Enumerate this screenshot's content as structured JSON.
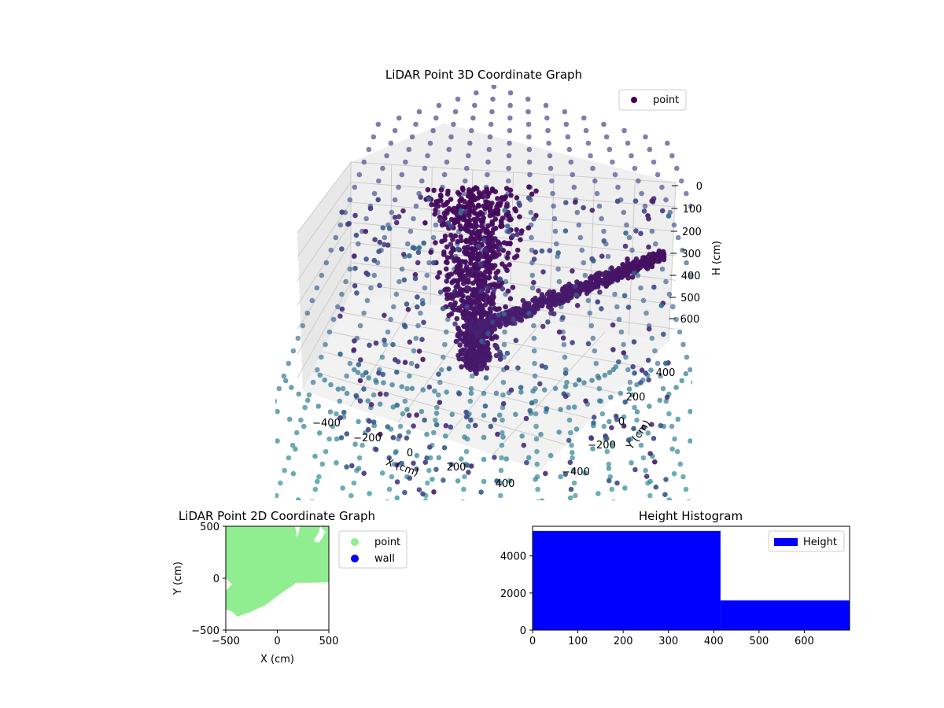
{
  "chart_data": [
    {
      "type": "scatter",
      "projection": "3d",
      "title": "LiDAR Point 3D Coordinate Graph",
      "xlabel": "X (cm)",
      "ylabel": "Y (cm)",
      "zlabel": "H (cm)",
      "xticks": [
        "−400",
        "−200",
        "0",
        "200",
        "400"
      ],
      "yticks": [
        "−400",
        "−200",
        "0",
        "200",
        "400"
      ],
      "zticks": [
        "0",
        "100",
        "200",
        "300",
        "400",
        "500",
        "600"
      ],
      "xlim": [
        -500,
        500
      ],
      "ylim": [
        -500,
        500
      ],
      "zlim": [
        0,
        650
      ],
      "z_axis_inverted": true,
      "legend": [
        {
          "label": "point",
          "color": "#440154"
        }
      ],
      "legend_position": "top-right",
      "colormap": "viridis",
      "grid": true
    },
    {
      "type": "scatter",
      "title": "LiDAR Point 2D Coordinate Graph",
      "xlabel": "X (cm)",
      "ylabel": "Y (cm)",
      "xticks": [
        "−500",
        "0",
        "500"
      ],
      "yticks": [
        "500",
        "0",
        "−500"
      ],
      "xlim": [
        -500,
        500
      ],
      "ylim": [
        -500,
        500
      ],
      "series": [
        {
          "name": "point",
          "color": "#90ee90"
        },
        {
          "name": "wall",
          "color": "#0000ff"
        }
      ],
      "legend_position": "outside-right"
    },
    {
      "type": "bar",
      "subtype": "histogram",
      "title": "Height Histogram",
      "xlabel": "",
      "ylabel": "",
      "xticks": [
        "0",
        "100",
        "200",
        "300",
        "400",
        "500",
        "600"
      ],
      "yticks": [
        "0",
        "2000",
        "4000"
      ],
      "xlim": [
        0,
        700
      ],
      "ylim": [
        0,
        5600
      ],
      "bins": [
        {
          "start": 0,
          "end": 415,
          "count": 5350
        },
        {
          "start": 415,
          "end": 700,
          "count": 1600
        }
      ],
      "series": [
        {
          "name": "Height",
          "color": "#0000ff"
        }
      ],
      "legend_position": "top-right"
    }
  ]
}
